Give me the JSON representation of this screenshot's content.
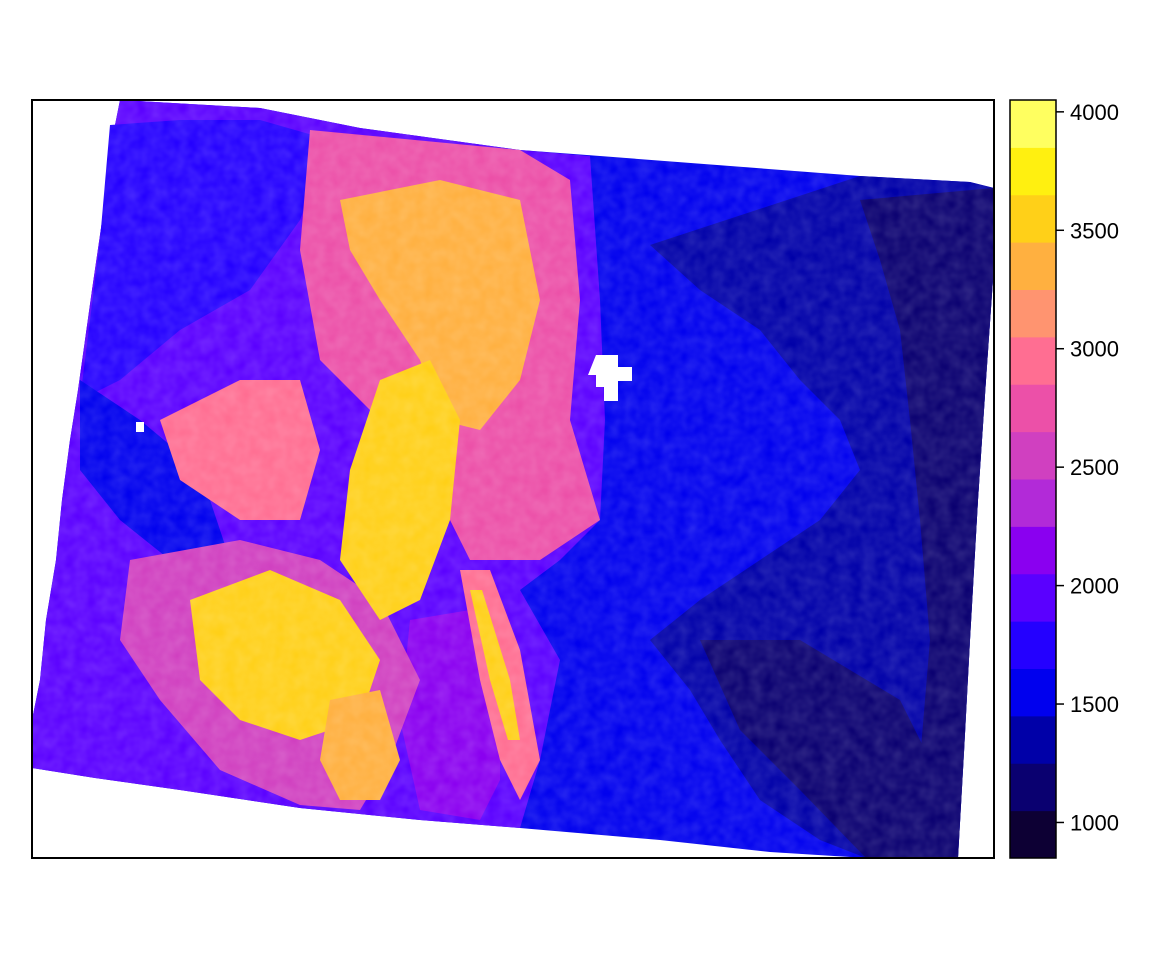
{
  "map": {
    "legend": {
      "ticks": [
        {
          "value": 4000,
          "label": "4000"
        },
        {
          "value": 3500,
          "label": "3500"
        },
        {
          "value": 3000,
          "label": "3000"
        },
        {
          "value": 2500,
          "label": "2500"
        },
        {
          "value": 2000,
          "label": "2000"
        },
        {
          "value": 1500,
          "label": "1500"
        },
        {
          "value": 1000,
          "label": "1000"
        }
      ],
      "range": [
        850,
        4050
      ],
      "colors": [
        "#0d0034",
        "#0a0070",
        "#0000a8",
        "#0000ee",
        "#2400ff",
        "#5a00ff",
        "#8a00f0",
        "#b22ad8",
        "#d040c0",
        "#ec50a8",
        "#ff6e92",
        "#ff9470",
        "#ffb040",
        "#ffd018",
        "#fff010",
        "#ffff60"
      ]
    },
    "colors": {
      "lowland": "#0000a8",
      "plains": "#0000ee",
      "foothills": "#5a00ff",
      "mountain": "#ec50a8",
      "peak": "#ffd018",
      "deep_east": "#0a0070"
    }
  }
}
